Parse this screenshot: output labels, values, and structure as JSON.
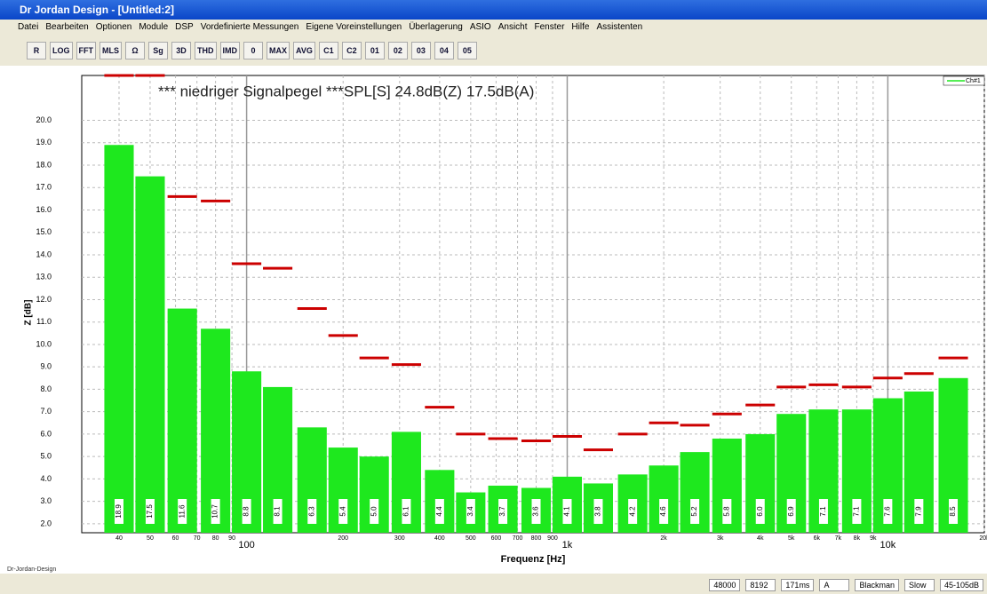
{
  "window": {
    "title": "Dr Jordan Design - [Untitled:2]"
  },
  "menu": [
    "Datei",
    "Bearbeiten",
    "Optionen",
    "Module",
    "DSP",
    "Vordefinierte Messungen",
    "Eigene Voreinstellungen",
    "Überlagerung",
    "ASIO",
    "Ansicht",
    "Fenster",
    "Hilfe",
    "Assistenten"
  ],
  "toolbar": [
    "R",
    "LOG",
    "FFT",
    "MLS",
    "Ω",
    "Sg",
    "3D",
    "THD",
    "IMD",
    "0",
    "MAX",
    "AVG",
    "C1",
    "C2",
    "01",
    "02",
    "03",
    "04",
    "05"
  ],
  "logo": "Dr-Jordan-Design",
  "status": [
    "48000",
    "8192",
    "171ms",
    "A",
    "Blackman",
    "Slow",
    "45-105dB"
  ],
  "chart_data": {
    "type": "bar",
    "title": "*** niedriger Signalpegel ***SPL[S] 24.8dB(Z) 17.5dB(A)",
    "y_label": "Z [dB]",
    "x_label": "Frequenz [Hz]",
    "log_x": true,
    "grid": true,
    "legend": "top-right",
    "x": [
      40,
      50,
      63,
      80,
      100,
      125,
      160,
      200,
      250,
      315,
      400,
      500,
      630,
      800,
      1000,
      1250,
      1600,
      2000,
      2500,
      3150,
      4000,
      5000,
      6300,
      8000,
      10000,
      12500,
      16000
    ],
    "series": [
      {
        "name": "Ch#1",
        "color": "#1ee81e",
        "values": [
          18.9,
          17.5,
          11.6,
          10.7,
          8.8,
          8.1,
          6.3,
          5.4,
          5.0,
          6.1,
          4.4,
          3.4,
          3.7,
          3.6,
          4.1,
          3.8,
          4.2,
          4.6,
          5.2,
          5.8,
          6.0,
          6.9,
          7.1,
          7.1,
          7.6,
          7.9,
          8.5
        ],
        "value_labels": [
          "18.9",
          "17.5",
          "11.6",
          "10.7",
          "8.8",
          "8.1",
          "6.3",
          "5.4",
          "5.0",
          "6.1",
          "4.4",
          "3.4",
          "3.7",
          "3.6",
          "4.1",
          "3.8",
          "4.2",
          "4.6",
          "5.2",
          "5.8",
          "6.0",
          "6.9",
          "7.1",
          "7.1",
          "7.6",
          "7.9",
          "8.5"
        ]
      },
      {
        "color": "#cc0000",
        "values": [
          22.0,
          22.0,
          16.6,
          16.4,
          13.6,
          13.4,
          11.6,
          10.4,
          9.4,
          9.1,
          7.2,
          6.0,
          5.8,
          5.7,
          5.9,
          5.3,
          6.0,
          6.5,
          6.4,
          6.9,
          7.3,
          8.1,
          8.2,
          8.1,
          8.5,
          8.7,
          9.4
        ]
      }
    ],
    "xlim": [
      30.6,
      20000
    ],
    "xticks": [
      40,
      50,
      60,
      70,
      80,
      90,
      100,
      200,
      300,
      400,
      500,
      600,
      700,
      800,
      900,
      {
        "value": 1000,
        "label": "1k"
      },
      {
        "value": 2000,
        "label": "2k"
      },
      {
        "value": 3000,
        "label": "3k"
      },
      {
        "value": 4000,
        "label": "4k"
      },
      {
        "value": 5000,
        "label": "5k"
      },
      {
        "value": 6000,
        "label": "6k"
      },
      {
        "value": 7000,
        "label": "7k"
      },
      {
        "value": 8000,
        "label": "8k"
      },
      {
        "value": 9000,
        "label": "9k"
      },
      {
        "value": 10000,
        "label": "10k"
      },
      {
        "value": 20000,
        "label": "20k"
      }
    ],
    "ylim": [
      1.6,
      22.0
    ],
    "yticks": [
      {
        "value": 2,
        "label": "2.0"
      },
      {
        "value": 3,
        "label": "3.0"
      },
      {
        "value": 4,
        "label": "4.0"
      },
      {
        "value": 5,
        "label": "5.0"
      },
      {
        "value": 6,
        "label": "6.0"
      },
      {
        "value": 7,
        "label": "7.0"
      },
      {
        "value": 8,
        "label": "8.0"
      },
      {
        "value": 9,
        "label": "9.0"
      },
      {
        "value": 10,
        "label": "10.0"
      },
      {
        "value": 11,
        "label": "11.0"
      },
      {
        "value": 12,
        "label": "12.0"
      },
      {
        "value": 13,
        "label": "13.0"
      },
      {
        "value": 14,
        "label": "14.0"
      },
      {
        "value": 15,
        "label": "15.0"
      },
      {
        "value": 16,
        "label": "16.0"
      },
      {
        "value": 17,
        "label": "17.0"
      },
      {
        "value": 18,
        "label": "18.0"
      },
      {
        "value": 19,
        "label": "19.0"
      },
      {
        "value": 20,
        "label": "20.0"
      }
    ]
  }
}
